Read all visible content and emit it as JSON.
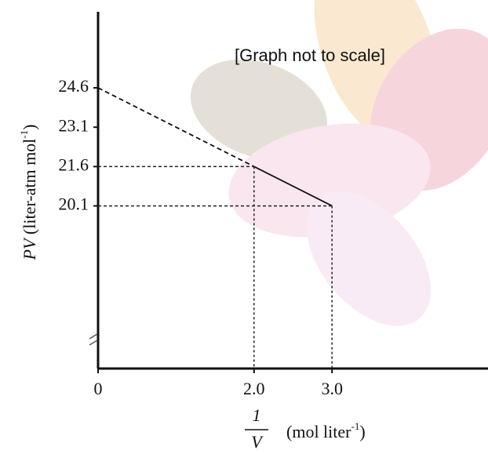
{
  "chart_data": {
    "type": "line",
    "annotation": "[Graph not to scale]",
    "y_label": {
      "var": "PV",
      "unit": "(liter-atm mol",
      "exp": "-1",
      "close": ")"
    },
    "x_label": {
      "numerator": "1",
      "denominator": "V",
      "unit": "(mol liter",
      "exp": "-1",
      "close": ")"
    },
    "x": [
      0,
      2.0,
      3.0
    ],
    "series": [
      {
        "values": [
          24.6,
          21.6,
          20.1
        ],
        "color": "#111111"
      }
    ],
    "xlim": [
      0,
      5
    ],
    "ylim": [
      13.9,
      27.5
    ],
    "xticks": [
      0,
      {
        "value": 2,
        "label": "2.0"
      },
      {
        "value": 3,
        "label": "3.0"
      }
    ],
    "yticks": [
      24.6,
      23.1,
      21.6,
      20.1
    ]
  }
}
